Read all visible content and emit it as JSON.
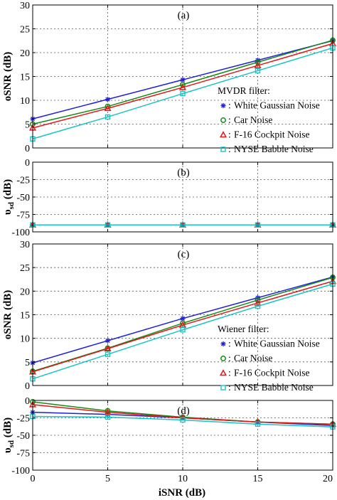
{
  "figure": {
    "xlabel": "iSNR (dB)"
  },
  "chart_data": [
    {
      "type": "line",
      "annotation": "(a)",
      "ylabel": "oSNR (dB)",
      "x": [
        0,
        5,
        10,
        15,
        20
      ],
      "xlim": [
        0,
        20
      ],
      "ylim": [
        0,
        30
      ],
      "xticks": [
        "0",
        "5",
        "10",
        "15",
        "20"
      ],
      "yticks": [
        "0",
        "5",
        "10",
        "15",
        "20",
        "25",
        "30"
      ],
      "xtick_labels_shown": false,
      "grid": true,
      "legend": {
        "title": "MVDR filter:",
        "placement": "bottom-right"
      },
      "series": [
        {
          "name": "White Gaussian Noise",
          "marker": "star",
          "color": "#1f1fdc",
          "values": [
            6.1,
            10.2,
            14.3,
            18.4,
            22.5
          ]
        },
        {
          "name": "Car Noise",
          "marker": "circle",
          "color": "#138a13",
          "values": [
            5.0,
            8.7,
            13.3,
            18.0,
            22.6
          ]
        },
        {
          "name": "F-16 Cockpit Noise",
          "marker": "triangle",
          "color": "#e01818",
          "values": [
            4.2,
            8.3,
            12.7,
            17.3,
            21.9
          ]
        },
        {
          "name": "NYSE Babble Noise",
          "marker": "square",
          "color": "#18c4c4",
          "values": [
            1.9,
            6.5,
            11.4,
            16.2,
            21.0
          ]
        }
      ]
    },
    {
      "type": "line",
      "annotation": "(b)",
      "ylabel": "υsd (dB)",
      "ylabel_main": "υ",
      "ylabel_sub": "sd",
      "ylabel_unit": " (dB)",
      "x": [
        0,
        5,
        10,
        15,
        20
      ],
      "xlim": [
        0,
        20
      ],
      "ylim": [
        -100,
        0
      ],
      "xticks": [
        "0",
        "5",
        "10",
        "15",
        "20"
      ],
      "yticks": [
        "0",
        "-25",
        "-50",
        "-75",
        "-100"
      ],
      "xtick_labels_shown": false,
      "grid": true,
      "series": [
        {
          "marker": "star",
          "color": "#1f1fdc",
          "values": [
            -90,
            -90,
            -90,
            -90,
            -90
          ]
        },
        {
          "marker": "circle",
          "color": "#138a13",
          "values": [
            -90,
            -90,
            -90,
            -90,
            -90
          ]
        },
        {
          "marker": "triangle",
          "color": "#e01818",
          "values": [
            -90,
            -90,
            -90,
            -90,
            -90
          ]
        },
        {
          "marker": "square",
          "color": "#18c4c4",
          "values": [
            -90,
            -90,
            -90,
            -90,
            -90
          ]
        }
      ]
    },
    {
      "type": "line",
      "annotation": "(c)",
      "ylabel": "oSNR (dB)",
      "x": [
        0,
        5,
        10,
        15,
        20
      ],
      "xlim": [
        0,
        20
      ],
      "ylim": [
        0,
        30
      ],
      "xticks": [
        "0",
        "5",
        "10",
        "15",
        "20"
      ],
      "yticks": [
        "0",
        "5",
        "10",
        "15",
        "20",
        "25",
        "30"
      ],
      "xtick_labels_shown": false,
      "grid": true,
      "legend": {
        "title": "Wiener filter:",
        "placement": "bottom-right"
      },
      "series": [
        {
          "name": "White Gaussian Noise",
          "marker": "star",
          "color": "#1f1fdc",
          "values": [
            4.8,
            9.5,
            14.2,
            18.6,
            23.0
          ]
        },
        {
          "name": "Car Noise",
          "marker": "circle",
          "color": "#138a13",
          "values": [
            3.0,
            7.9,
            13.2,
            18.1,
            22.9
          ]
        },
        {
          "name": "F-16 Cockpit Noise",
          "marker": "triangle",
          "color": "#e01818",
          "values": [
            2.9,
            7.8,
            12.8,
            17.5,
            22.1
          ]
        },
        {
          "name": "NYSE Babble Noise",
          "marker": "square",
          "color": "#18c4c4",
          "values": [
            1.4,
            6.6,
            11.8,
            16.8,
            21.5
          ]
        }
      ]
    },
    {
      "type": "line",
      "annotation": "(d)",
      "ylabel": "υsd (dB)",
      "ylabel_main": "υ",
      "ylabel_sub": "sd",
      "ylabel_unit": " (dB)",
      "x": [
        0,
        5,
        10,
        15,
        20
      ],
      "xlim": [
        0,
        20
      ],
      "ylim": [
        -100,
        0
      ],
      "xticks": [
        "0",
        "5",
        "10",
        "15",
        "20"
      ],
      "yticks": [
        "0",
        "-25",
        "-50",
        "-75",
        "-100"
      ],
      "xtick_labels_shown": true,
      "grid": true,
      "series": [
        {
          "marker": "star",
          "color": "#1f1fdc",
          "values": [
            -17,
            -20,
            -25,
            -31,
            -36
          ]
        },
        {
          "marker": "circle",
          "color": "#138a13",
          "values": [
            -2,
            -15,
            -24,
            -31,
            -34
          ]
        },
        {
          "marker": "triangle",
          "color": "#e01818",
          "values": [
            -6,
            -17,
            -25,
            -31,
            -34
          ]
        },
        {
          "marker": "square",
          "color": "#18c4c4",
          "values": [
            -23,
            -24,
            -28,
            -34,
            -38
          ]
        }
      ]
    }
  ]
}
